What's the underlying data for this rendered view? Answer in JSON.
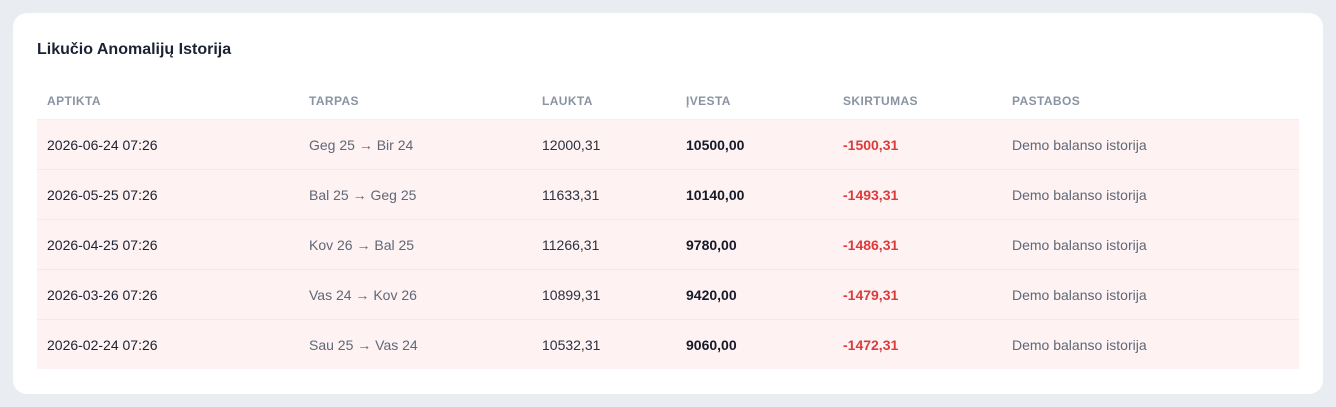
{
  "card": {
    "title": "Likučio Anomalijų Istorija"
  },
  "table": {
    "headers": {
      "detected": "APTIKTA",
      "gap": "TARPAS",
      "expected": "LAUKTA",
      "entered": "ĮVESTA",
      "difference": "SKIRTUMAS",
      "notes": "PASTABOS"
    },
    "rows": [
      {
        "detected": "2026-06-24 07:26",
        "gap": "Geg 25 → Bir 24",
        "expected": "12000,31",
        "entered": "10500,00",
        "difference": "-1500,31",
        "notes": "Demo balanso istorija"
      },
      {
        "detected": "2026-05-25 07:26",
        "gap": "Bal 25 → Geg 25",
        "expected": "11633,31",
        "entered": "10140,00",
        "difference": "-1493,31",
        "notes": "Demo balanso istorija"
      },
      {
        "detected": "2026-04-25 07:26",
        "gap": "Kov 26 → Bal 25",
        "expected": "11266,31",
        "entered": "9780,00",
        "difference": "-1486,31",
        "notes": "Demo balanso istorija"
      },
      {
        "detected": "2026-03-26 07:26",
        "gap": "Vas 24 → Kov 26",
        "expected": "10899,31",
        "entered": "9420,00",
        "difference": "-1479,31",
        "notes": "Demo balanso istorija"
      },
      {
        "detected": "2026-02-24 07:26",
        "gap": "Sau 25 → Vas 24",
        "expected": "10532,31",
        "entered": "9060,00",
        "difference": "-1472,31",
        "notes": "Demo balanso istorija"
      }
    ]
  },
  "colors": {
    "page_background": "#e9edf2",
    "row_highlight": "#fff2f2",
    "difference_negative": "#dc3b3b"
  }
}
